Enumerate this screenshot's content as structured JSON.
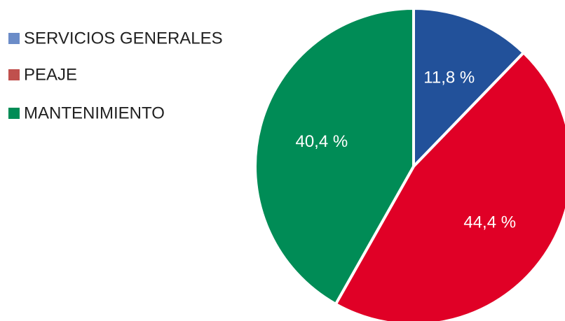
{
  "chart_data": {
    "type": "pie",
    "categories": [
      "SERVICIOS GENERALES",
      "PEAJE",
      "MANTENIMIENTO"
    ],
    "values": [
      11.8,
      44.4,
      40.4
    ],
    "value_labels": [
      "11,8 %",
      "44,4 %",
      "40,4 %"
    ],
    "colors": [
      "#22519a",
      "#e00026",
      "#008c56"
    ],
    "legend_colors": [
      "#6b8cc8",
      "#c0504d",
      "#008c56"
    ],
    "legend": "top-left"
  }
}
